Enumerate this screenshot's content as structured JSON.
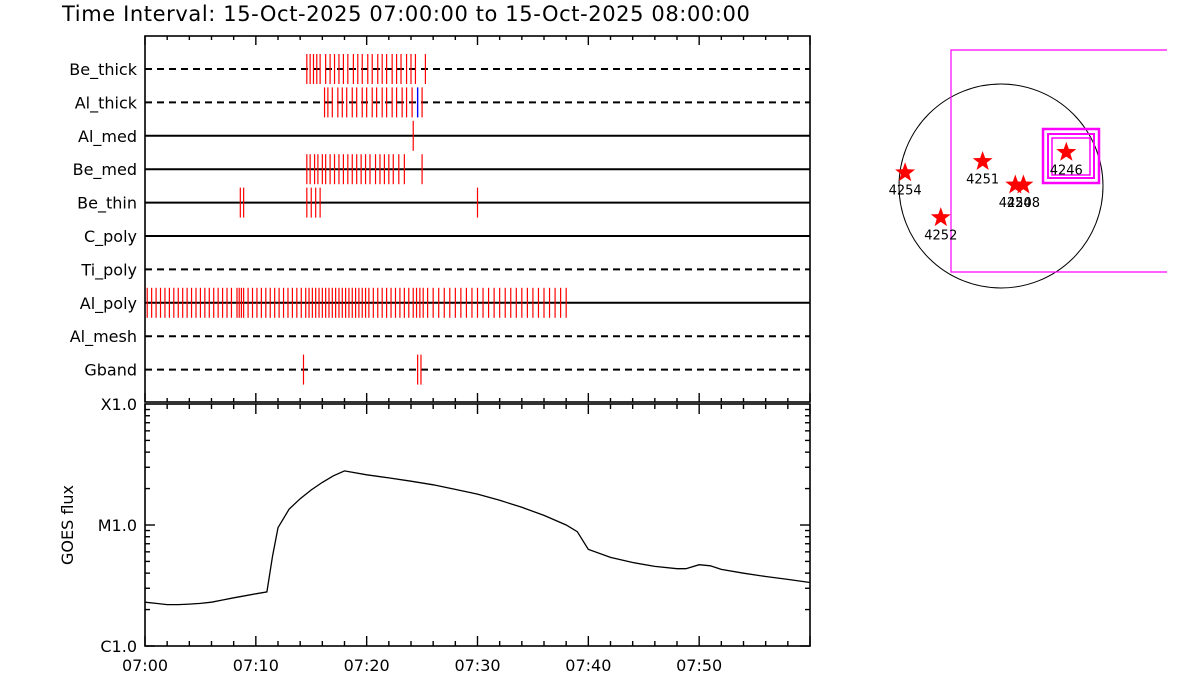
{
  "title": "Time Interval: 15-Oct-2025 07:00:00 to 15-Oct-2025 08:00:00",
  "chart_data": [
    {
      "type": "event-timeline",
      "x_unit": "minutes after 07:00",
      "xlim": [
        0,
        60
      ],
      "rows": [
        {
          "label": "Be_thick",
          "line": "dashed",
          "red": [
            14.6,
            14.9,
            15.2,
            15.5,
            15.8,
            16.3,
            16.7,
            17.1,
            17.5,
            17.9,
            18.3,
            18.8,
            19.2,
            19.6,
            20.1,
            20.5,
            21.0,
            21.4,
            21.8,
            22.3,
            22.7,
            23.1,
            23.6,
            24.0,
            24.4,
            25.3
          ],
          "blue": []
        },
        {
          "label": "Al_thick",
          "line": "dashed",
          "red": [
            16.2,
            16.5,
            16.9,
            17.4,
            17.8,
            18.2,
            18.7,
            19.1,
            19.6,
            20.0,
            20.5,
            20.9,
            21.4,
            21.8,
            22.3,
            22.7,
            23.2,
            23.6,
            24.1,
            25.0
          ],
          "blue": [
            24.6
          ]
        },
        {
          "label": "Al_med",
          "line": "solid",
          "red": [
            24.2
          ],
          "blue": []
        },
        {
          "label": "Be_med",
          "line": "solid",
          "red": [
            14.6,
            14.9,
            15.3,
            15.6,
            16.0,
            16.3,
            16.7,
            17.1,
            17.5,
            17.9,
            18.3,
            18.7,
            19.1,
            19.5,
            19.9,
            20.3,
            20.8,
            21.2,
            21.6,
            22.0,
            22.4,
            22.9,
            23.4,
            25.0
          ],
          "blue": []
        },
        {
          "label": "Be_thin",
          "line": "solid",
          "red": [
            8.6,
            8.9,
            14.6,
            15.0,
            15.4,
            15.8,
            30.0
          ],
          "blue": []
        },
        {
          "label": "C_poly",
          "line": "solid",
          "red": [],
          "blue": []
        },
        {
          "label": "Ti_poly",
          "line": "dashed",
          "red": [],
          "blue": []
        },
        {
          "label": "Al_poly",
          "line": "solid",
          "red": [
            0.2,
            0.6,
            1.0,
            1.4,
            1.8,
            2.2,
            2.6,
            3.0,
            3.4,
            3.8,
            4.2,
            4.6,
            5.0,
            5.4,
            5.8,
            6.2,
            6.6,
            7.0,
            7.4,
            7.8,
            8.3,
            8.5,
            8.7,
            8.9,
            9.3,
            9.7,
            10.1,
            10.5,
            10.9,
            11.3,
            11.7,
            12.1,
            12.5,
            12.9,
            13.3,
            13.7,
            14.1,
            14.5,
            14.8,
            15.1,
            15.4,
            15.7,
            16.0,
            16.3,
            16.6,
            16.9,
            17.2,
            17.5,
            17.8,
            18.1,
            18.4,
            18.7,
            19.0,
            19.3,
            19.6,
            19.9,
            20.2,
            20.6,
            21.0,
            21.4,
            21.8,
            22.2,
            22.6,
            23.0,
            23.4,
            23.8,
            24.2,
            24.5,
            24.8,
            25.1,
            25.5,
            26.0,
            26.5,
            27.0,
            27.5,
            28.0,
            28.5,
            29.0,
            29.5,
            30.0,
            30.5,
            31.0,
            31.5,
            32.0,
            32.5,
            33.0,
            33.5,
            34.0,
            34.5,
            35.0,
            35.5,
            36.0,
            36.5,
            37.0,
            37.5,
            38.0
          ],
          "blue": []
        },
        {
          "label": "Al_mesh",
          "line": "dashed",
          "red": [],
          "blue": []
        },
        {
          "label": "Gband",
          "line": "dashed",
          "red": [
            14.3,
            24.6,
            24.9
          ],
          "blue": []
        }
      ]
    },
    {
      "type": "line",
      "ylabel": "GOES flux",
      "yscale": "log",
      "yticks": [
        "C1.0",
        "M1.0",
        "X1.0"
      ],
      "ylim": [
        1e-06,
        0.0001
      ],
      "xticks": [
        "07:00",
        "07:10",
        "07:20",
        "07:30",
        "07:40",
        "07:50"
      ],
      "xlim": [
        0,
        60
      ],
      "series": [
        {
          "x": [
            0,
            1,
            2,
            3,
            4,
            5,
            6,
            7,
            8,
            9,
            10,
            11,
            11.5,
            12,
            13,
            14,
            15,
            16,
            17,
            18,
            20,
            22,
            24,
            26,
            28,
            30,
            32,
            34,
            36,
            38,
            39,
            40,
            42,
            44,
            46,
            48,
            48.8,
            50,
            51,
            52,
            54,
            56,
            58,
            60
          ],
          "y": [
            2.3e-06,
            2.25e-06,
            2.2e-06,
            2.2e-06,
            2.22e-06,
            2.25e-06,
            2.3e-06,
            2.4e-06,
            2.5e-06,
            2.6e-06,
            2.7e-06,
            2.8e-06,
            5.5e-06,
            9.5e-06,
            1.35e-05,
            1.65e-05,
            1.95e-05,
            2.25e-05,
            2.55e-05,
            2.8e-05,
            2.6e-05,
            2.45e-05,
            2.3e-05,
            2.15e-05,
            1.97e-05,
            1.8e-05,
            1.6e-05,
            1.4e-05,
            1.2e-05,
            1e-05,
            8.8e-06,
            6.3e-06,
            5.4e-06,
            4.9e-06,
            4.55e-06,
            4.35e-06,
            4.35e-06,
            4.7e-06,
            4.6e-06,
            4.3e-06,
            4e-06,
            3.75e-06,
            3.55e-06,
            3.35e-06
          ]
        }
      ]
    },
    {
      "type": "scatter",
      "units": "solar disk frame",
      "points": [
        {
          "label": "4254",
          "x": -0.94,
          "y": 0.13
        },
        {
          "label": "4251",
          "x": -0.18,
          "y": 0.24
        },
        {
          "label": "4250",
          "x": 0.14,
          "y": 0.01
        },
        {
          "label": "4248",
          "x": 0.22,
          "y": 0.01
        },
        {
          "label": "4246",
          "x": 0.64,
          "y": 0.33
        },
        {
          "label": "4252",
          "x": -0.59,
          "y": -0.31
        }
      ]
    }
  ],
  "colors": {
    "event_red": "#ff0000",
    "event_blue": "#0000ff",
    "fov_box": "#ff00ff",
    "axis": "#000000"
  }
}
